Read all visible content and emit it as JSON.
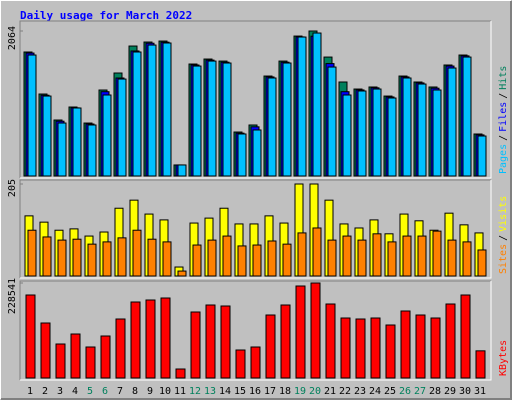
{
  "chart_data": [
    {
      "type": "bar",
      "title": "Daily usage for March 2022",
      "separator": "/",
      "ylim": [
        0,
        2064
      ],
      "yticks": [
        2064
      ],
      "series": [
        {
          "name": "Hits",
          "color": "#00805C",
          "values": [
            1765,
            1167,
            797,
            982,
            754,
            1224,
            1466,
            1850,
            1907,
            1921,
            157,
            1594,
            1665,
            1636,
            626,
            726,
            1423,
            1636,
            1992,
            2064,
            1693,
            1338,
            1238,
            1267,
            1138,
            1423,
            1338,
            1267,
            1580,
            1722,
            598
          ]
        },
        {
          "name": "Files",
          "color": "#0000FF",
          "values": [
            1750,
            1150,
            780,
            970,
            740,
            1200,
            1395,
            1780,
            1890,
            1905,
            157,
            1580,
            1650,
            1620,
            610,
            700,
            1410,
            1620,
            1980,
            1990,
            1600,
            1200,
            1225,
            1255,
            1125,
            1410,
            1325,
            1250,
            1565,
            1710,
            585
          ]
        },
        {
          "name": "Pages",
          "color": "#00C0FF",
          "values": [
            1722,
            1138,
            754,
            968,
            726,
            1153,
            1380,
            1765,
            1864,
            1893,
            157,
            1565,
            1636,
            1608,
            598,
            655,
            1395,
            1608,
            1978,
            2035,
            1551,
            1153,
            1210,
            1238,
            1110,
            1395,
            1309,
            1224,
            1537,
            1693,
            569
          ]
        }
      ]
    },
    {
      "type": "bar",
      "separator": "/",
      "ylim": [
        0,
        205
      ],
      "yticks": [
        205
      ],
      "series": [
        {
          "name": "Visits",
          "color": "#FFFF00",
          "values": [
            134,
            120,
            102,
            105,
            89,
            98,
            151,
            169,
            138,
            125,
            20,
            118,
            129,
            151,
            116,
            116,
            134,
            118,
            205,
            205,
            169,
            116,
            107,
            125,
            94,
            138,
            123,
            102,
            140,
            114,
            96
          ]
        },
        {
          "name": "Sites",
          "color": "#FF8000",
          "values": [
            102,
            87,
            80,
            82,
            71,
            76,
            85,
            102,
            82,
            76,
            11,
            69,
            80,
            89,
            67,
            69,
            78,
            71,
            96,
            107,
            80,
            89,
            80,
            94,
            76,
            89,
            89,
            100,
            80,
            76,
            58
          ]
        }
      ]
    },
    {
      "type": "bar",
      "ylim": [
        0,
        228541
      ],
      "yticks": [
        228541
      ],
      "categories": [
        "1",
        "2",
        "3",
        "4",
        "5",
        "6",
        "7",
        "8",
        "9",
        "10",
        "11",
        "12",
        "13",
        "14",
        "15",
        "16",
        "17",
        "18",
        "19",
        "20",
        "21",
        "22",
        "23",
        "24",
        "25",
        "26",
        "27",
        "28",
        "29",
        "30",
        "31"
      ],
      "category_colors": [
        "#000000",
        "#000000",
        "#000000",
        "#000000",
        "#00805C",
        "#00805C",
        "#000000",
        "#000000",
        "#000000",
        "#000000",
        "#000000",
        "#00805C",
        "#00805C",
        "#000000",
        "#000000",
        "#000000",
        "#000000",
        "#000000",
        "#00805C",
        "#00805C",
        "#000000",
        "#000000",
        "#000000",
        "#000000",
        "#000000",
        "#00805C",
        "#00805C",
        "#000000",
        "#000000",
        "#000000",
        "#000000"
      ],
      "series": [
        {
          "name": "KBytes",
          "color": "#FF0000",
          "values": [
            199673,
            132314,
            81794,
            105851,
            74577,
            101040,
            141937,
            182833,
            187645,
            192456,
            21651,
            158776,
            175616,
            173210,
            67360,
            74577,
            151560,
            175616,
            221324,
            228541,
            178022,
            144343,
            141937,
            144343,
            127503,
            161182,
            151560,
            144343,
            178022,
            199673,
            65355
          ]
        }
      ]
    }
  ]
}
